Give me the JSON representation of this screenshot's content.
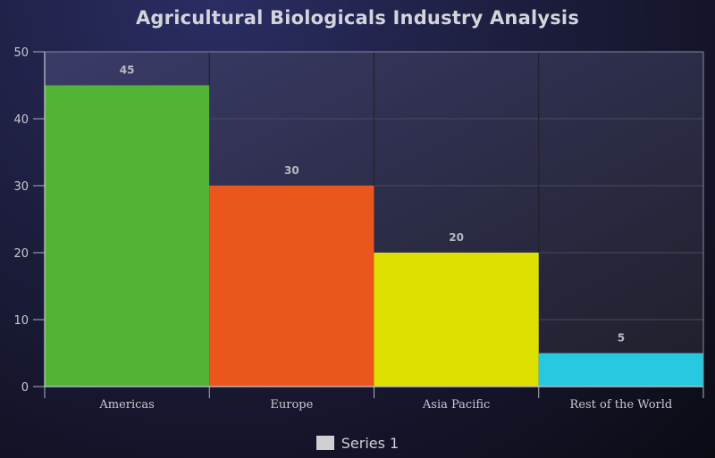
{
  "chart_data": {
    "type": "bar",
    "title": "Agricultural Biologicals Industry Analysis",
    "xlabel": "",
    "ylabel": "",
    "categories": [
      "Americas",
      "Europe",
      "Asia Pacific",
      "Rest of the World"
    ],
    "series": [
      {
        "name": "Series 1",
        "values": [
          45,
          30,
          20,
          5
        ]
      }
    ],
    "bar_colors": [
      "#52b434",
      "#ea561b",
      "#dde000",
      "#26c9e0"
    ],
    "ylim": [
      0,
      50
    ],
    "yticks": [
      "0",
      "10",
      "20",
      "30",
      "40",
      "50"
    ],
    "data_labels": [
      "45",
      "30",
      "20",
      "5"
    ],
    "grid": true,
    "legend_position": "bottom",
    "legend_swatch_color": "#d0d0d0"
  }
}
